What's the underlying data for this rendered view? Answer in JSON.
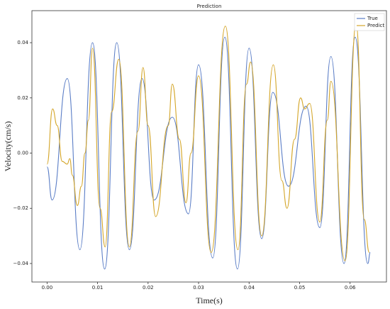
{
  "chart_data": {
    "type": "line",
    "title": "Prediction",
    "xlabel": "Time(s)",
    "ylabel": "Velocity(cm/s)",
    "legend": "upper right",
    "xlim": [
      -0.003,
      0.0672
    ],
    "ylim": [
      -0.0467,
      0.0516
    ],
    "xticks": [
      {
        "value": 0,
        "label": "0.00"
      },
      {
        "value": 0.01,
        "label": "0.01"
      },
      {
        "value": 0.02,
        "label": "0.02"
      },
      {
        "value": 0.03,
        "label": "0.03"
      },
      {
        "value": 0.04,
        "label": "0.04"
      },
      {
        "value": 0.05,
        "label": "0.05"
      },
      {
        "value": 0.06,
        "label": "0.06"
      }
    ],
    "yticks": [
      {
        "value": -0.04,
        "label": "−0.04"
      },
      {
        "value": -0.02,
        "label": "−0.02"
      },
      {
        "value": 0,
        "label": "0.00"
      },
      {
        "value": 0.02,
        "label": "0.02"
      },
      {
        "value": 0.04,
        "label": "0.04"
      }
    ],
    "series": [
      {
        "name": "True",
        "color": "#5a7dc6",
        "x": [
          0,
          0.001,
          0.004,
          0.0065,
          0.009,
          0.0114,
          0.0138,
          0.0163,
          0.0188,
          0.0212,
          0.0248,
          0.028,
          0.03,
          0.0328,
          0.0352,
          0.0377,
          0.04,
          0.0425,
          0.0447,
          0.0478,
          0.0513,
          0.054,
          0.0562,
          0.0588,
          0.061,
          0.0635,
          0.064
        ],
        "values": [
          -0.005,
          -0.017,
          0.027,
          -0.035,
          0.04,
          -0.042,
          0.04,
          -0.035,
          0.027,
          -0.017,
          0.013,
          -0.022,
          0.032,
          -0.038,
          0.042,
          -0.042,
          0.038,
          -0.031,
          0.022,
          -0.012,
          0.017,
          -0.027,
          0.035,
          -0.04,
          0.042,
          -0.04,
          -0.036
        ]
      },
      {
        "name": "Predict",
        "color": "#d4a62a",
        "x": [
          0,
          0.0011,
          0.002,
          0.003,
          0.004,
          0.0045,
          0.005,
          0.006,
          0.0068,
          0.0075,
          0.0082,
          0.009,
          0.0105,
          0.0115,
          0.0128,
          0.0142,
          0.0163,
          0.018,
          0.019,
          0.02,
          0.0215,
          0.024,
          0.0248,
          0.0262,
          0.0275,
          0.0285,
          0.03,
          0.0325,
          0.0353,
          0.0378,
          0.0395,
          0.0403,
          0.0425,
          0.0448,
          0.0465,
          0.0475,
          0.049,
          0.0502,
          0.051,
          0.052,
          0.054,
          0.0555,
          0.0562,
          0.059,
          0.0612,
          0.0628,
          0.0638
        ],
        "values": [
          -0.004,
          0.016,
          0.01,
          -0.003,
          -0.004,
          -0.002,
          -0.008,
          -0.019,
          -0.012,
          0.0,
          0.012,
          0.038,
          -0.02,
          -0.034,
          0.015,
          0.034,
          -0.034,
          0.008,
          0.031,
          0.01,
          -0.023,
          0.01,
          0.025,
          0.005,
          -0.018,
          0.0,
          0.028,
          -0.036,
          0.046,
          -0.035,
          0.025,
          0.033,
          -0.03,
          0.032,
          -0.01,
          -0.02,
          0.005,
          0.02,
          0.016,
          0.018,
          -0.025,
          0.012,
          0.026,
          -0.039,
          0.047,
          -0.024,
          -0.036
        ]
      }
    ]
  }
}
